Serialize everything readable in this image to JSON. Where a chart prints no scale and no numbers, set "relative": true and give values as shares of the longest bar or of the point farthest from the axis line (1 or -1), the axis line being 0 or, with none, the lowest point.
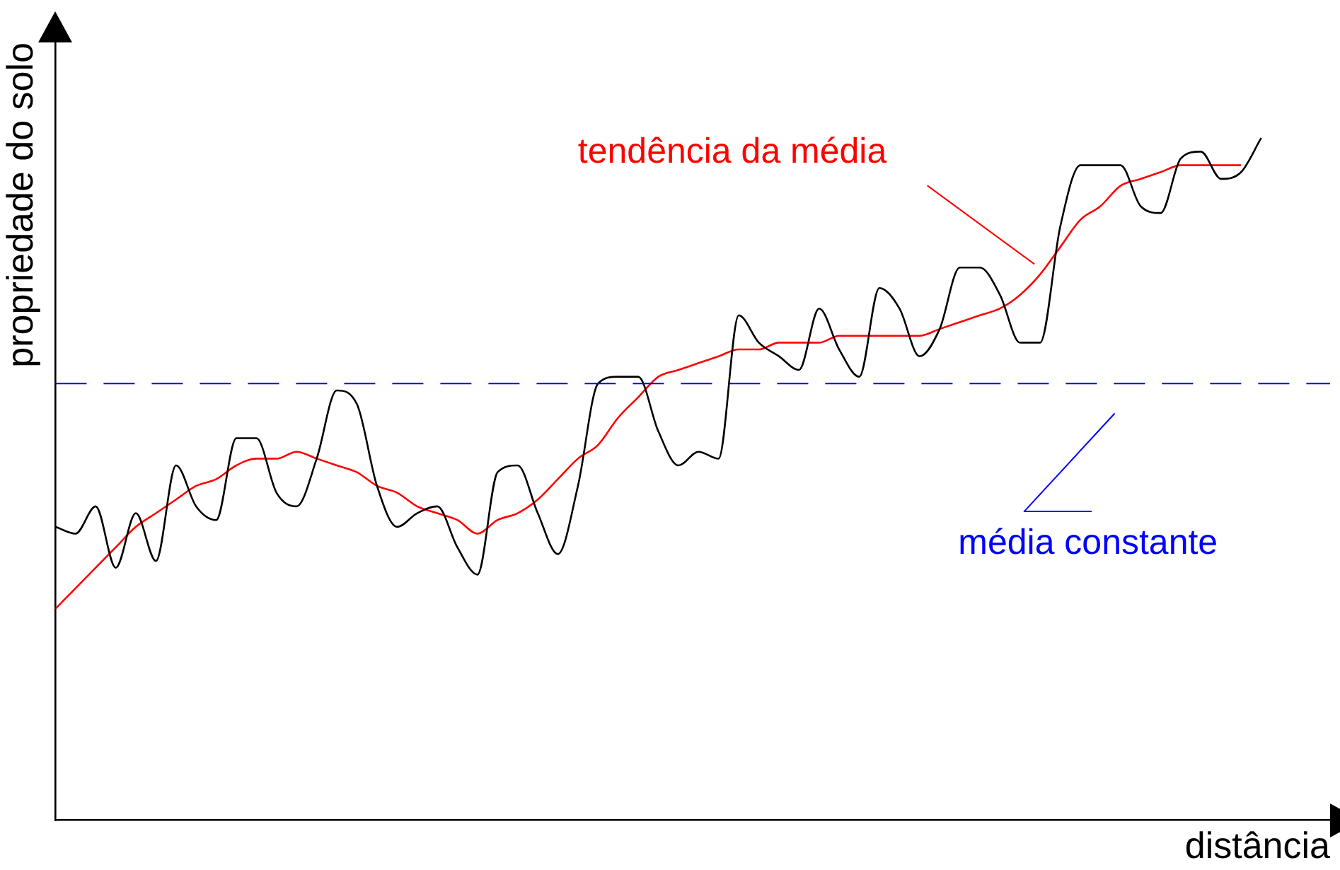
{
  "chart_data": {
    "type": "line",
    "relative": true,
    "xlabel": "distância",
    "ylabel": "propriedade do solo",
    "categories": [
      null,
      null,
      null,
      null,
      null,
      null,
      null,
      null,
      null,
      null,
      null,
      null,
      null,
      null,
      null,
      null,
      null,
      null,
      null,
      null,
      null,
      null,
      null,
      null,
      null,
      null,
      null,
      null,
      null,
      null,
      null,
      null,
      null,
      null,
      null,
      null,
      null,
      null,
      null,
      null,
      null,
      null,
      null,
      null,
      null,
      null,
      null,
      null,
      null,
      null,
      null,
      null,
      null,
      null,
      null,
      null,
      null,
      null,
      null,
      null,
      null
    ],
    "series": [
      {
        "color": "#000000",
        "values": [
          0.43,
          0.42,
          0.46,
          0.37,
          0.45,
          0.38,
          0.52,
          0.46,
          0.44,
          0.56,
          0.56,
          0.48,
          0.46,
          0.53,
          0.63,
          0.61,
          0.49,
          0.43,
          0.45,
          0.46,
          0.4,
          0.36,
          0.51,
          0.52,
          0.45,
          0.39,
          0.49,
          0.64,
          0.65,
          0.65,
          0.57,
          0.52,
          0.54,
          0.53,
          0.74,
          0.7,
          0.68,
          0.66,
          0.75,
          0.69,
          0.65,
          0.78,
          0.75,
          0.68,
          0.72,
          0.81,
          0.81,
          0.77,
          0.7,
          0.7,
          0.87,
          0.96,
          0.96,
          0.96,
          0.9,
          0.89,
          0.97,
          0.98,
          0.94,
          0.95,
          1
        ]
      },
      {
        "name": "tendência da média",
        "color": "#ff0000",
        "values": [
          0.31,
          0.34,
          0.37,
          0.4,
          0.43,
          0.45,
          0.47,
          0.49,
          0.5,
          0.52,
          0.53,
          0.53,
          0.54,
          0.53,
          0.52,
          0.51,
          0.49,
          0.48,
          0.46,
          0.45,
          0.44,
          0.42,
          0.44,
          0.45,
          0.47,
          0.5,
          0.53,
          0.55,
          0.59,
          0.62,
          0.65,
          0.66,
          0.67,
          0.68,
          0.69,
          0.69,
          0.7,
          0.7,
          0.7,
          0.71,
          0.71,
          0.71,
          0.71,
          0.71,
          0.72,
          0.73,
          0.74,
          0.75,
          0.77,
          0.8,
          0.84,
          0.88,
          0.9,
          0.93,
          0.94,
          0.95,
          0.96,
          0.96,
          0.96,
          0.96,
          null
        ]
      }
    ],
    "ref_lines": [
      {
        "axis": "y",
        "value": 0.64,
        "label": "média constante",
        "color": "#0000ff",
        "line_style": "dashed"
      }
    ],
    "grid": false,
    "legend": false,
    "marker": "none",
    "line_style": "solid"
  }
}
